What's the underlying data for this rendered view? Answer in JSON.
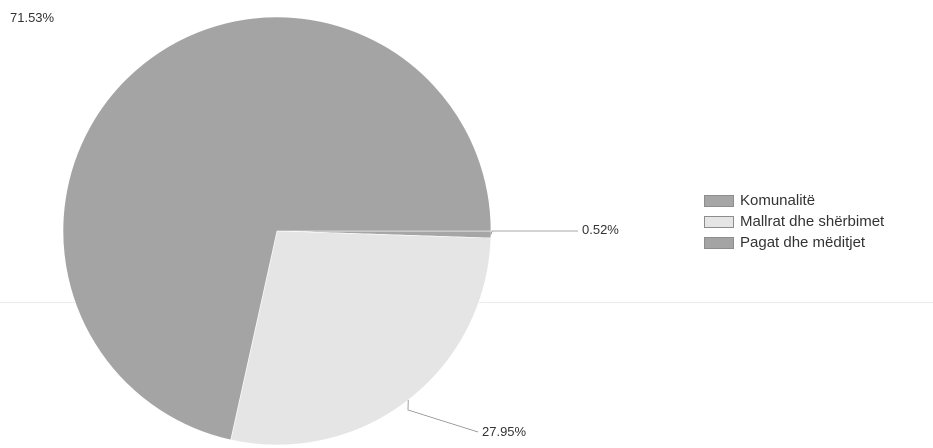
{
  "chart_data": {
    "type": "pie",
    "title": "",
    "slices": [
      {
        "label": "Komunalitë",
        "value": 0.52,
        "display": "0.52%",
        "color": "#a6a6a6"
      },
      {
        "label": "Mallrat dhe shërbimet",
        "value": 27.95,
        "display": "27.95%",
        "color": "#e5e5e5"
      },
      {
        "label": "Pagat dhe mëditjet",
        "value": 71.53,
        "display": "71.53%",
        "color": "#a4a4a4"
      }
    ],
    "legend": {
      "placement": "right",
      "entries": [
        "Komunalitë",
        "Mallrat dhe shërbimet",
        "Pagat dhe mëditjet"
      ]
    }
  }
}
